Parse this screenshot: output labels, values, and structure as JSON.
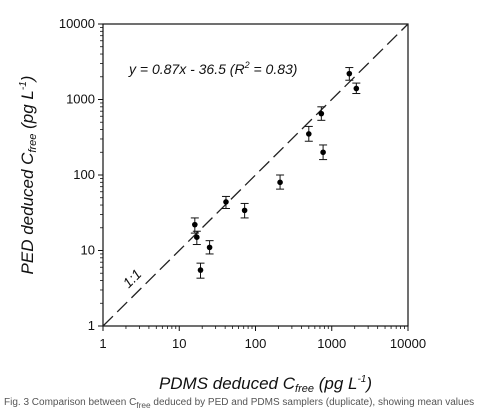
{
  "chart_data": {
    "type": "scatter",
    "x_scale": "log",
    "y_scale": "log",
    "xlim": [
      1,
      10000
    ],
    "ylim": [
      1,
      10000
    ],
    "x_ticks": [
      "1",
      "10",
      "100",
      "1000",
      "10000"
    ],
    "y_ticks": [
      "1",
      "10",
      "100",
      "1000",
      "10000"
    ],
    "xlabel": {
      "prefix": "PDMS deduced C",
      "sub": "free",
      "unit": " (pg L",
      "sup": "-1",
      "close": ")"
    },
    "ylabel": {
      "prefix": "PED deduced C",
      "sub": "free",
      "unit": " (pg L",
      "sup": "-1",
      "close": ")"
    },
    "equation": {
      "main": "y = 0.87x - 36.5 (R",
      "sup": "2",
      "rest": " = 0.83)"
    },
    "ref_line_label": "1:1",
    "grid": false,
    "points": [
      {
        "x": 16,
        "y": 22,
        "err_low": 17,
        "err_high": 27
      },
      {
        "x": 17,
        "y": 15,
        "err_low": 12,
        "err_high": 18
      },
      {
        "x": 19,
        "y": 5.5,
        "err_low": 4.3,
        "err_high": 6.8
      },
      {
        "x": 25,
        "y": 11,
        "err_low": 9,
        "err_high": 13.5
      },
      {
        "x": 41,
        "y": 44,
        "err_low": 36,
        "err_high": 52
      },
      {
        "x": 72,
        "y": 34,
        "err_low": 27,
        "err_high": 42
      },
      {
        "x": 210,
        "y": 80,
        "err_low": 65,
        "err_high": 100
      },
      {
        "x": 500,
        "y": 350,
        "err_low": 280,
        "err_high": 440
      },
      {
        "x": 730,
        "y": 650,
        "err_low": 530,
        "err_high": 800
      },
      {
        "x": 770,
        "y": 200,
        "err_low": 160,
        "err_high": 250
      },
      {
        "x": 1700,
        "y": 2200,
        "err_low": 1800,
        "err_high": 2650
      },
      {
        "x": 2100,
        "y": 1400,
        "err_low": 1200,
        "err_high": 1650
      }
    ]
  },
  "caption": "Fig. 3 Comparison between C",
  "caption_sub": "free",
  "caption_rest": " deduced by PED and PDMS samplers (duplicate), showing mean values with error bars ..."
}
